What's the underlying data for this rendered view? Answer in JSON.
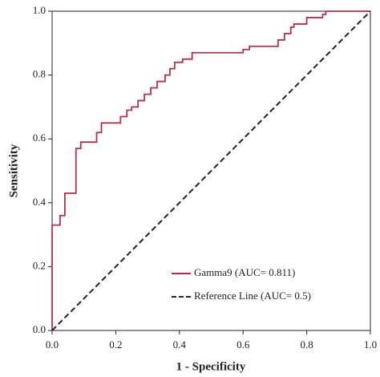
{
  "chart_data": {
    "type": "line",
    "xlabel": "1 - Specificity",
    "ylabel": "Sensitivity",
    "xlim": [
      0,
      1
    ],
    "ylim": [
      0,
      1
    ],
    "xticks": [
      {
        "value": 0,
        "label": "0.0"
      },
      0.2,
      0.4,
      0.6,
      0.8,
      {
        "value": 1,
        "label": "1.0"
      }
    ],
    "yticks": [
      {
        "value": 0,
        "label": "0.0"
      },
      0.2,
      0.4,
      0.6,
      0.8,
      {
        "value": 1,
        "label": "1.0"
      }
    ],
    "legend": "lower right",
    "series": [
      {
        "name": "Gamma9 (AUC= 0.811)",
        "color": "#b0304a",
        "dashed": false,
        "x": [
          0,
          0,
          0.025,
          0.025,
          0.04,
          0.04,
          0.075,
          0.075,
          0.09,
          0.09,
          0.14,
          0.14,
          0.155,
          0.155,
          0.215,
          0.215,
          0.235,
          0.235,
          0.25,
          0.25,
          0.27,
          0.27,
          0.29,
          0.29,
          0.31,
          0.31,
          0.33,
          0.33,
          0.355,
          0.355,
          0.37,
          0.37,
          0.385,
          0.385,
          0.41,
          0.41,
          0.44,
          0.44,
          0.6,
          0.6,
          0.62,
          0.62,
          0.71,
          0.71,
          0.73,
          0.73,
          0.75,
          0.75,
          0.76,
          0.76,
          0.8,
          0.8,
          0.85,
          0.85,
          0.86,
          0.86,
          1
        ],
        "values": [
          0,
          0.33,
          0.33,
          0.36,
          0.36,
          0.43,
          0.43,
          0.57,
          0.57,
          0.59,
          0.59,
          0.62,
          0.62,
          0.65,
          0.65,
          0.67,
          0.67,
          0.69,
          0.69,
          0.7,
          0.7,
          0.72,
          0.72,
          0.74,
          0.74,
          0.76,
          0.76,
          0.78,
          0.78,
          0.8,
          0.8,
          0.82,
          0.82,
          0.84,
          0.84,
          0.85,
          0.85,
          0.87,
          0.87,
          0.88,
          0.88,
          0.89,
          0.89,
          0.91,
          0.91,
          0.93,
          0.93,
          0.95,
          0.95,
          0.96,
          0.96,
          0.98,
          0.98,
          0.99,
          0.99,
          1,
          1
        ]
      },
      {
        "name": "Reference Line (AUC= 0.5)",
        "color": "#222222",
        "dashed": true,
        "x": [
          0,
          1
        ],
        "values": [
          0,
          1
        ]
      }
    ]
  }
}
